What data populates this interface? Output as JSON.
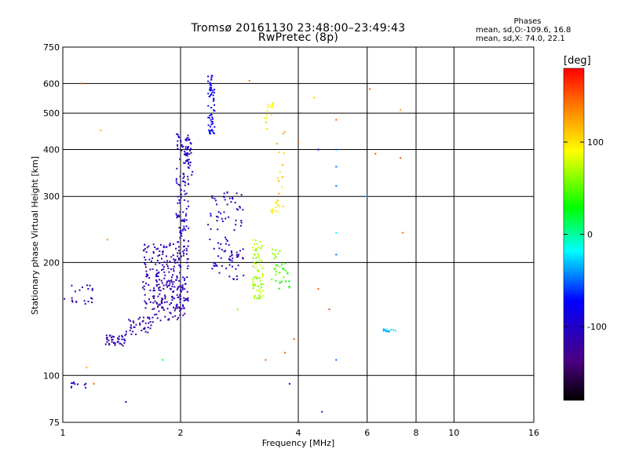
{
  "header": {
    "title_line1": "Tromsø 20161130 23:48:00–23:49:43",
    "title_line2": "RwPretec (8p)"
  },
  "phases": {
    "title": "Phases",
    "line_o": "mean, sd,O:-109.6, 16.8",
    "line_x": "mean, sd,X:  74.0, 22.1"
  },
  "colorbar": {
    "unit_label": "[deg]",
    "ticks": [
      100,
      0,
      -100
    ],
    "tick_labels": [
      "100",
      "0",
      "-100"
    ],
    "range": [
      -180,
      180
    ]
  },
  "chart_data": {
    "type": "scatter",
    "xlabel": "Frequency [MHz]",
    "ylabel": "Stationary phase Virtual Height [km]",
    "xscale": "log",
    "yscale": "log",
    "xlim": [
      1,
      16
    ],
    "ylim": [
      75,
      750
    ],
    "xticks": [
      1,
      2,
      4,
      6,
      8,
      10,
      16
    ],
    "xtick_labels": [
      "1",
      "2",
      "4",
      "6",
      "8",
      "10",
      "16"
    ],
    "yticks": [
      75,
      100,
      200,
      300,
      400,
      500,
      600,
      750
    ],
    "ytick_labels": [
      "75",
      "100",
      "200",
      "300",
      "400",
      "500",
      "600",
      "750"
    ],
    "grid": true,
    "clusters": [
      {
        "x": [
          1.28,
          1.45
        ],
        "y": [
          120,
          128
        ],
        "count": 40,
        "phase": -115
      },
      {
        "x": [
          1.45,
          1.7
        ],
        "y": [
          128,
          145
        ],
        "count": 40,
        "phase": -115
      },
      {
        "x": [
          1.6,
          2.0
        ],
        "y": [
          150,
          225
        ],
        "count": 170,
        "phase": -112
      },
      {
        "x": [
          1.7,
          2.05
        ],
        "y": [
          140,
          175
        ],
        "count": 60,
        "phase": -120
      },
      {
        "x": [
          1.95,
          2.1
        ],
        "y": [
          150,
          440
        ],
        "count": 160,
        "phase": -105
      },
      {
        "x": [
          2.05,
          2.15
        ],
        "y": [
          340,
          430
        ],
        "count": 30,
        "phase": -100
      },
      {
        "x": [
          2.35,
          2.45
        ],
        "y": [
          440,
          630
        ],
        "count": 60,
        "phase": -80
      },
      {
        "x": [
          2.35,
          2.9
        ],
        "y": [
          180,
          310
        ],
        "count": 90,
        "phase": -105
      },
      {
        "x": [
          2.7,
          2.9
        ],
        "y": [
          200,
          215
        ],
        "count": 10,
        "phase": -110
      },
      {
        "x": [
          3.05,
          3.25
        ],
        "y": [
          160,
          230
        ],
        "count": 70,
        "phase": 70
      },
      {
        "x": [
          3.25,
          3.45
        ],
        "y": [
          440,
          540
        ],
        "count": 15,
        "phase": 95
      },
      {
        "x": [
          3.4,
          3.55
        ],
        "y": [
          270,
          290
        ],
        "count": 12,
        "phase": 90
      },
      {
        "x": [
          3.4,
          3.6
        ],
        "y": [
          180,
          220
        ],
        "count": 15,
        "phase": 60
      },
      {
        "x": [
          3.5,
          3.7
        ],
        "y": [
          250,
          450
        ],
        "count": 15,
        "phase": 110
      },
      {
        "x": [
          3.5,
          3.8
        ],
        "y": [
          170,
          200
        ],
        "count": 20,
        "phase": 40
      },
      {
        "x": [
          1.05,
          1.2
        ],
        "y": [
          155,
          175
        ],
        "count": 20,
        "phase": -108
      },
      {
        "x": [
          1.05,
          1.15
        ],
        "y": [
          92,
          96
        ],
        "count": 10,
        "phase": -105
      },
      {
        "x": [
          6.6,
          7.1
        ],
        "y": [
          130,
          133
        ],
        "count": 12,
        "phase": -30
      }
    ],
    "scattered_points": [
      {
        "x": 1.12,
        "y": 600,
        "phase": 150
      },
      {
        "x": 1.25,
        "y": 450,
        "phase": 120
      },
      {
        "x": 1.01,
        "y": 160,
        "phase": -120
      },
      {
        "x": 1.3,
        "y": 230,
        "phase": 130
      },
      {
        "x": 1.45,
        "y": 85,
        "phase": -110
      },
      {
        "x": 1.2,
        "y": 95,
        "phase": 150
      },
      {
        "x": 1.8,
        "y": 110,
        "phase": 20
      },
      {
        "x": 1.15,
        "y": 105,
        "phase": 120
      },
      {
        "x": 3.0,
        "y": 610,
        "phase": 140
      },
      {
        "x": 4.0,
        "y": 420,
        "phase": 150
      },
      {
        "x": 4.5,
        "y": 400,
        "phase": -100
      },
      {
        "x": 5.0,
        "y": 480,
        "phase": 150
      },
      {
        "x": 5.0,
        "y": 400,
        "phase": -50
      },
      {
        "x": 5.0,
        "y": 360,
        "phase": -50
      },
      {
        "x": 5.0,
        "y": 320,
        "phase": -50
      },
      {
        "x": 5.0,
        "y": 240,
        "phase": -20
      },
      {
        "x": 5.0,
        "y": 210,
        "phase": -50
      },
      {
        "x": 5.0,
        "y": 110,
        "phase": -50
      },
      {
        "x": 4.8,
        "y": 150,
        "phase": 160
      },
      {
        "x": 4.5,
        "y": 170,
        "phase": 150
      },
      {
        "x": 4.6,
        "y": 80,
        "phase": -110
      },
      {
        "x": 3.9,
        "y": 125,
        "phase": 150
      },
      {
        "x": 3.8,
        "y": 95,
        "phase": -80
      },
      {
        "x": 4.4,
        "y": 550,
        "phase": 110
      },
      {
        "x": 6.1,
        "y": 580,
        "phase": 150
      },
      {
        "x": 6.3,
        "y": 390,
        "phase": 150
      },
      {
        "x": 7.3,
        "y": 380,
        "phase": 150
      },
      {
        "x": 7.4,
        "y": 240,
        "phase": 140
      },
      {
        "x": 6.0,
        "y": 300,
        "phase": -40
      },
      {
        "x": 7.3,
        "y": 510,
        "phase": 120
      },
      {
        "x": 3.7,
        "y": 115,
        "phase": 150
      },
      {
        "x": 3.3,
        "y": 110,
        "phase": 150
      },
      {
        "x": 2.8,
        "y": 150,
        "phase": 60
      }
    ]
  }
}
